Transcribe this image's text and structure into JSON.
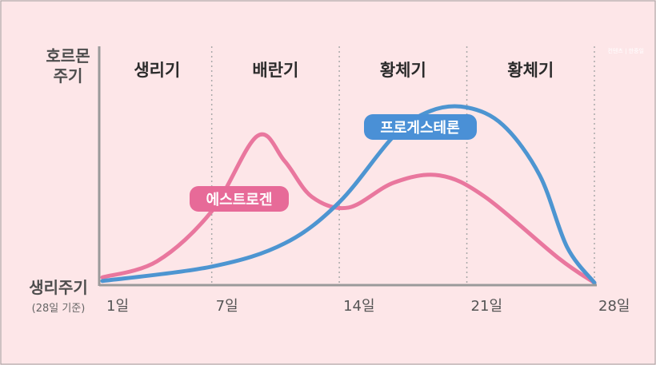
{
  "chart_data": {
    "type": "line",
    "y_axis_label": "호르몬\n주기",
    "x_axis_label": "생리주기",
    "x_axis_sublabel": "(28일 기준)",
    "phases": [
      "생리기",
      "배란기",
      "황체기",
      "황체기"
    ],
    "x_ticks": [
      {
        "day": 1,
        "label": "1일"
      },
      {
        "day": 7,
        "label": "7일"
      },
      {
        "day": 14,
        "label": "14일"
      },
      {
        "day": 21,
        "label": "21일"
      },
      {
        "day": 28,
        "label": "28일"
      }
    ],
    "xlim": [
      1,
      28
    ],
    "ylim": [
      0,
      100
    ],
    "grid": "vertical dotted lines at phase boundaries (days 7, 14, 21, 28)",
    "series": [
      {
        "name": "에스트로겐",
        "color": "#e9779e",
        "label_color": "#e76a98",
        "points": [
          [
            1,
            3
          ],
          [
            4,
            12
          ],
          [
            7,
            40
          ],
          [
            9.5,
            82
          ],
          [
            11,
            68
          ],
          [
            12.5,
            48
          ],
          [
            14.5,
            42
          ],
          [
            17,
            56
          ],
          [
            19.5,
            60
          ],
          [
            22,
            48
          ],
          [
            26,
            14
          ],
          [
            28,
            0
          ]
        ]
      },
      {
        "name": "프로게스테론",
        "color": "#4d95d1",
        "label_color": "#4a90d6",
        "points": [
          [
            1,
            1
          ],
          [
            7,
            9
          ],
          [
            11,
            22
          ],
          [
            14,
            45
          ],
          [
            17,
            82
          ],
          [
            19,
            96
          ],
          [
            21,
            98
          ],
          [
            23,
            88
          ],
          [
            25,
            60
          ],
          [
            26.5,
            20
          ],
          [
            28,
            0
          ]
        ]
      }
    ]
  },
  "watermark": "컨텐츠 | 한중일"
}
